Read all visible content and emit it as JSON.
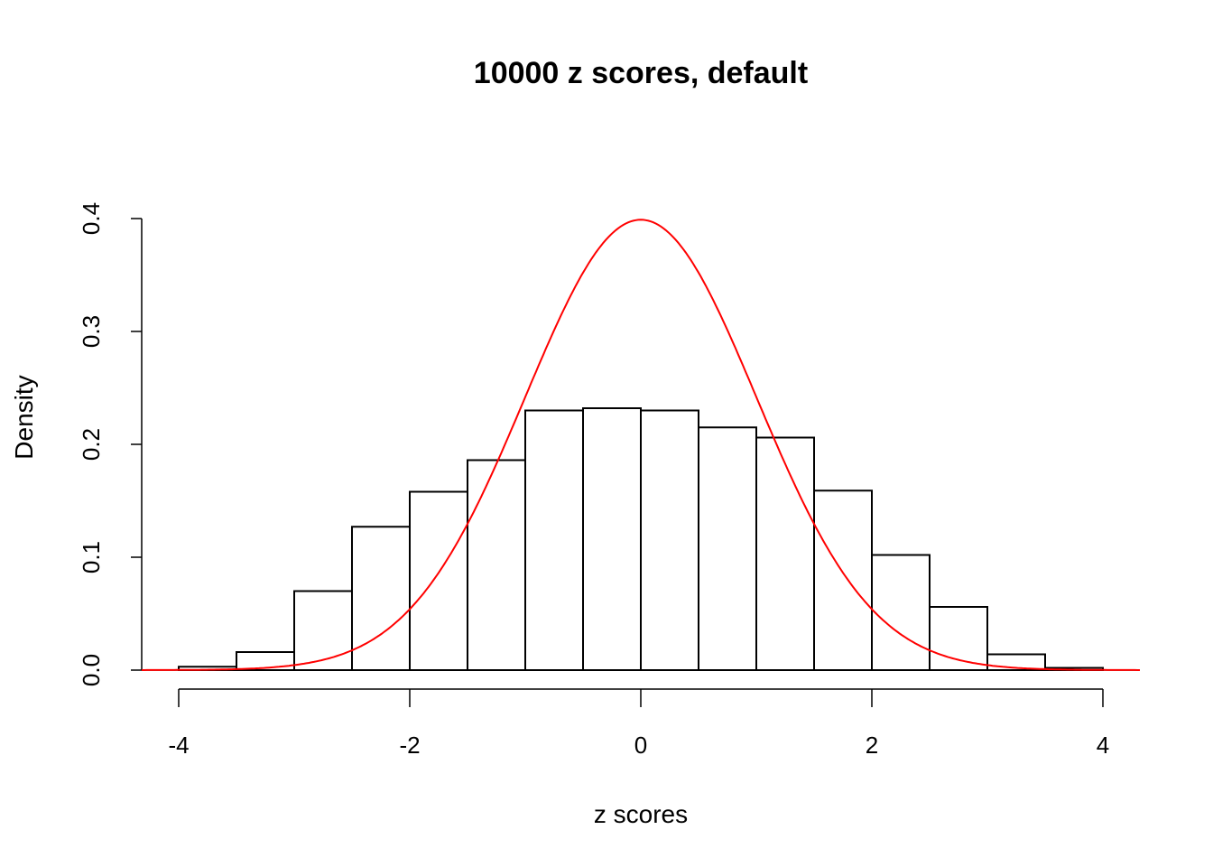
{
  "chart_data": {
    "type": "bar",
    "title": "10000 z scores, default",
    "xlabel": "z scores",
    "ylabel": "Density",
    "xlim": [
      -4.32,
      4.32
    ],
    "ylim": [
      0,
      0.4
    ],
    "grid": false,
    "bin_edges": [
      -4,
      -3.5,
      -3,
      -2.5,
      -2,
      -1.5,
      -1,
      -0.5,
      0,
      0.5,
      1,
      1.5,
      2,
      2.5,
      3,
      3.5,
      4
    ],
    "values": [
      0.003,
      0.016,
      0.07,
      0.127,
      0.158,
      0.186,
      0.23,
      0.232,
      0.23,
      0.215,
      0.206,
      0.159,
      0.102,
      0.056,
      0.014,
      0.002
    ],
    "x_ticks": [
      "-4",
      "-2",
      "0",
      "2",
      "4"
    ],
    "y_ticks": [
      "0.0",
      "0.1",
      "0.2",
      "0.3",
      "0.4"
    ],
    "overlay": {
      "type": "line",
      "function": "normal density",
      "mean": 0,
      "sd": 1,
      "color": "#ff0000"
    },
    "bar_fill": "#ffffff",
    "bar_stroke": "#000000"
  }
}
